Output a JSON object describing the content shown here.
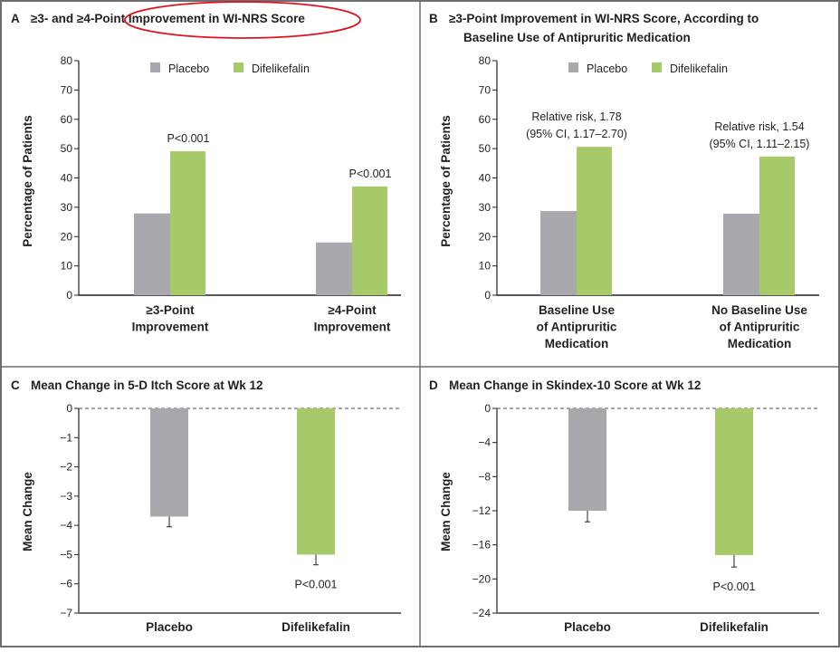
{
  "colors": {
    "placebo": "#a7a9ac",
    "difelikefalin": "#a6c969",
    "annotation_ellipse": "#e0141e",
    "frame": "#6d6e71"
  },
  "chart_data": [
    {
      "panel": "A",
      "type": "bar",
      "title": "≥3- and ≥4-Point Improvement in WI-NRS Score",
      "ylabel": "Percentage of Patients",
      "ylim": [
        0,
        80
      ],
      "yticks": [
        0,
        10,
        20,
        30,
        40,
        50,
        60,
        70,
        80
      ],
      "legend": "top-center",
      "grid": false,
      "categories": [
        [
          "≥3-Point",
          "Improvement"
        ],
        [
          "≥4-Point",
          "Improvement"
        ]
      ],
      "series": [
        {
          "name": "Placebo",
          "values": [
            27.9,
            18.0
          ]
        },
        {
          "name": "Difelikefalin",
          "values": [
            49.1,
            37.1
          ]
        }
      ],
      "annotations": [
        [
          "P<0.001"
        ],
        [
          "P<0.001"
        ]
      ]
    },
    {
      "panel": "B",
      "type": "bar",
      "title": [
        "≥3-Point Improvement in WI-NRS Score, According to",
        "Baseline Use of Antipruritic Medication"
      ],
      "ylabel": "Percentage of Patients",
      "ylim": [
        0,
        80
      ],
      "yticks": [
        0,
        10,
        20,
        30,
        40,
        50,
        60,
        70,
        80
      ],
      "legend": "top-center",
      "grid": false,
      "categories": [
        [
          "Baseline Use",
          "of Antipruritic",
          "Medication"
        ],
        [
          "No Baseline Use",
          "of Antipruritic",
          "Medication"
        ]
      ],
      "series": [
        {
          "name": "Placebo",
          "values": [
            28.7,
            27.8
          ]
        },
        {
          "name": "Difelikefalin",
          "values": [
            50.6,
            47.3
          ]
        }
      ],
      "annotations": [
        [
          "Relative risk, 1.78",
          "(95% CI, 1.17–2.70)"
        ],
        [
          "Relative risk, 1.54",
          "(95% CI, 1.11–2.15)"
        ]
      ]
    },
    {
      "panel": "C",
      "type": "bar",
      "title": "Mean Change in 5-D Itch Score at Wk 12",
      "ylabel": "Mean Change",
      "ylim": [
        -7,
        0
      ],
      "yticks": [
        0,
        -1,
        -2,
        -3,
        -4,
        -5,
        -6,
        -7
      ],
      "ytick_labels": [
        "0",
        "−1",
        "−2",
        "−3",
        "−4",
        "−5",
        "−6",
        "−7"
      ],
      "grid": false,
      "reference_line": 0,
      "categories": [
        "Placebo",
        "Difelikefalin"
      ],
      "values": [
        -3.7,
        -5.0
      ],
      "error_low": [
        -4.05,
        -5.35
      ],
      "annotations": [
        "",
        "P<0.001"
      ]
    },
    {
      "panel": "D",
      "type": "bar",
      "title": "Mean Change in Skindex-10 Score at Wk 12",
      "ylabel": "Mean Change",
      "ylim": [
        -24,
        0
      ],
      "yticks": [
        0,
        -4,
        -8,
        -12,
        -16,
        -20,
        -24
      ],
      "ytick_labels": [
        "0",
        "−4",
        "−8",
        "−12",
        "−16",
        "−20",
        "−24"
      ],
      "grid": false,
      "reference_line": 0,
      "categories": [
        "Placebo",
        "Difelikefalin"
      ],
      "values": [
        -12.0,
        -17.2
      ],
      "error_low": [
        -13.3,
        -18.6
      ],
      "annotations": [
        "",
        "P<0.001"
      ]
    }
  ]
}
